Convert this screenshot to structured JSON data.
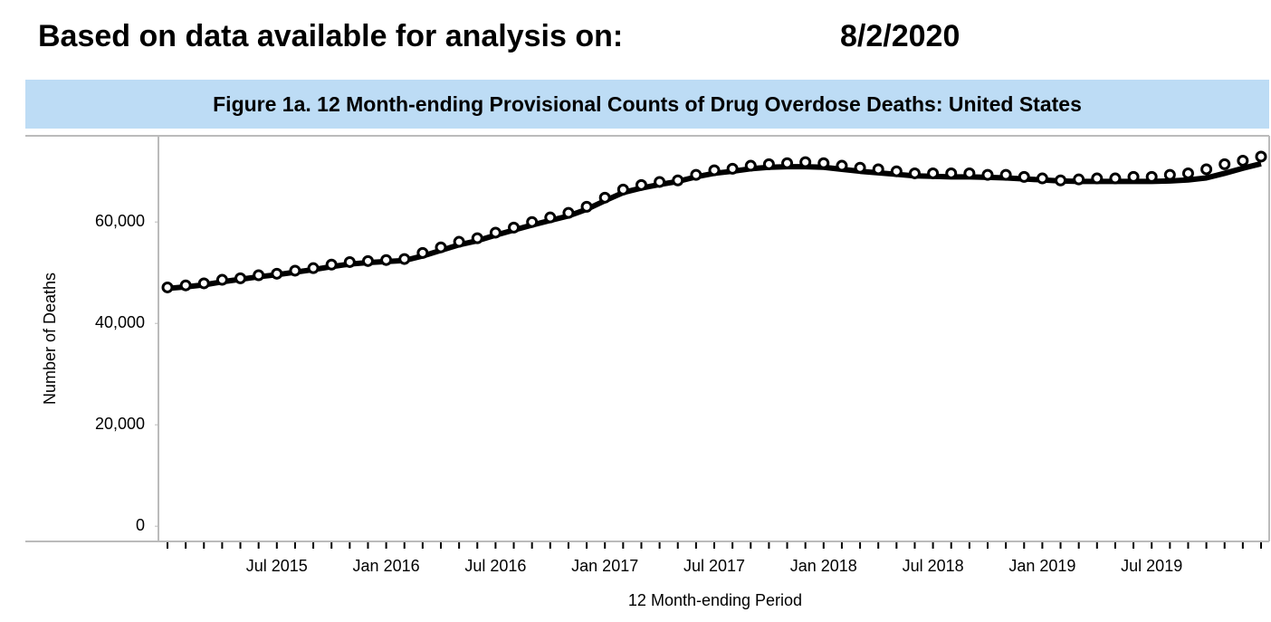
{
  "header": {
    "label": "Based on data available for analysis on:",
    "date": "8/2/2020"
  },
  "chart_data": {
    "type": "line",
    "title": "Figure 1a. 12 Month-ending Provisional Counts of Drug Overdose Deaths: United States",
    "x_label": "12 Month-ending Period",
    "y_label": "Number of Deaths",
    "categories": [
      null,
      null,
      null,
      null,
      null,
      null,
      "Jul 2015",
      null,
      null,
      null,
      null,
      null,
      "Jan 2016",
      null,
      null,
      null,
      null,
      null,
      "Jul 2016",
      null,
      null,
      null,
      null,
      null,
      "Jan 2017",
      null,
      null,
      null,
      null,
      null,
      "Jul 2017",
      null,
      null,
      null,
      null,
      null,
      "Jan 2018",
      null,
      null,
      null,
      null,
      null,
      "Jul 2018",
      null,
      null,
      null,
      null,
      null,
      "Jan 2019",
      null,
      null,
      null,
      null,
      null,
      "Jul 2019",
      null,
      null,
      null,
      null,
      null,
      null
    ],
    "series": [
      {
        "color": "#000000",
        "style": "line",
        "values": [
          46900,
          47200,
          47600,
          48200,
          48700,
          49200,
          49600,
          50100,
          50600,
          51200,
          51700,
          52000,
          52200,
          52400,
          53300,
          54400,
          55500,
          56300,
          57400,
          58400,
          59400,
          60300,
          61200,
          62500,
          64200,
          65800,
          66700,
          67400,
          68000,
          68900,
          69600,
          70000,
          70500,
          70800,
          70900,
          70900,
          70800,
          70400,
          70000,
          69700,
          69400,
          69100,
          69000,
          68900,
          68900,
          68800,
          68700,
          68500,
          68300,
          68100,
          68000,
          68000,
          68000,
          68000,
          68000,
          68100,
          68300,
          68700,
          69600,
          70600,
          71500
        ]
      },
      {
        "color": "#000000",
        "style": "markers",
        "values": [
          47100,
          47500,
          47900,
          48600,
          48900,
          49500,
          49800,
          50400,
          50900,
          51600,
          52100,
          52300,
          52500,
          52700,
          53900,
          55000,
          56100,
          56800,
          57900,
          58900,
          60000,
          60900,
          61800,
          63000,
          64800,
          66400,
          67300,
          67900,
          68200,
          69300,
          70200,
          70500,
          71100,
          71400,
          71600,
          71800,
          71600,
          71100,
          70700,
          70400,
          70000,
          69600,
          69600,
          69600,
          69600,
          69300,
          69300,
          68900,
          68600,
          68200,
          68400,
          68600,
          68600,
          68900,
          68900,
          69300,
          69600,
          70400,
          71400,
          72100,
          72900
        ]
      }
    ],
    "ylim": [
      -3000,
      77000
    ],
    "yticks": [
      0,
      {
        "value": 20000,
        "label": "20,000"
      },
      {
        "value": 40000,
        "label": "40,000"
      },
      {
        "value": 60000,
        "label": "60,000"
      }
    ]
  }
}
